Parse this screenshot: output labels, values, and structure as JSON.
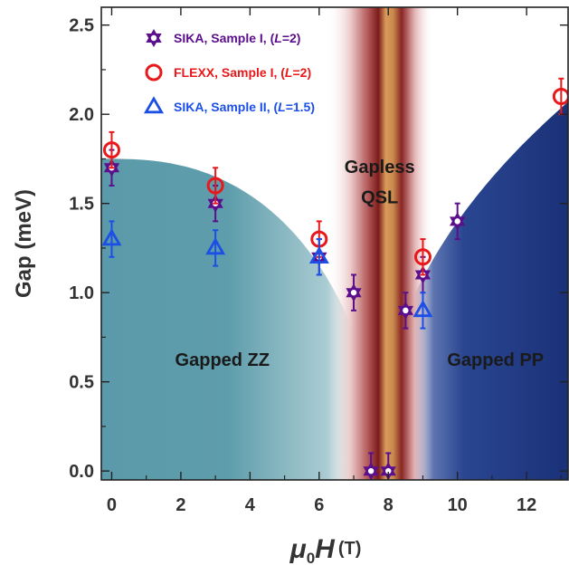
{
  "chart_data": {
    "type": "scatter",
    "title": "",
    "xlabel": "μ0H (T)",
    "xlabel_parts": {
      "mu": "μ",
      "sub": "0",
      "h": "H",
      "unit": "(T)"
    },
    "ylabel": "Gap (meV)",
    "xlim": [
      -0.3,
      13.2
    ],
    "ylim": [
      -0.05,
      2.6
    ],
    "x_ticks": [
      0,
      2,
      4,
      6,
      8,
      10,
      12
    ],
    "x_tick_labels": [
      "0",
      "2",
      "4",
      "6",
      "8",
      "10",
      "12"
    ],
    "y_ticks": [
      0.0,
      0.5,
      1.0,
      1.5,
      2.0,
      2.5
    ],
    "y_tick_labels": [
      "0.0",
      "0.5",
      "1.0",
      "1.5",
      "2.0",
      "2.5"
    ],
    "grid": false,
    "legend_position": "top-left",
    "series": [
      {
        "name": "SIKA, Sample I, (L=2)",
        "label_parts": [
          "SIKA, Sample I, (",
          "L",
          "=2)"
        ],
        "marker": "star",
        "color": "#5b0f8c",
        "points": [
          {
            "x": 0,
            "y": 1.7,
            "err": 0.1
          },
          {
            "x": 3,
            "y": 1.5,
            "err": 0.1
          },
          {
            "x": 6,
            "y": 1.2,
            "err": 0.1
          },
          {
            "x": 7,
            "y": 1.0,
            "err": 0.1
          },
          {
            "x": 7.5,
            "y": 0.0,
            "err": 0.1
          },
          {
            "x": 8,
            "y": 0.0,
            "err": 0.1
          },
          {
            "x": 8.5,
            "y": 0.9,
            "err": 0.1
          },
          {
            "x": 9,
            "y": 1.1,
            "err": 0.1
          },
          {
            "x": 10,
            "y": 1.4,
            "err": 0.1
          }
        ]
      },
      {
        "name": "FLEXX, Sample I, (L=2)",
        "label_parts": [
          "FLEXX, Sample I, (",
          "L",
          "=2)"
        ],
        "marker": "circle",
        "color": "#e8181b",
        "points": [
          {
            "x": 0,
            "y": 1.8,
            "err": 0.1
          },
          {
            "x": 3,
            "y": 1.6,
            "err": 0.1
          },
          {
            "x": 6,
            "y": 1.3,
            "err": 0.1
          },
          {
            "x": 9,
            "y": 1.2,
            "err": 0.1
          },
          {
            "x": 13,
            "y": 2.1,
            "err": 0.1
          }
        ]
      },
      {
        "name": "SIKA, Sample II, (L=1.5)",
        "label_parts": [
          "SIKA, Sample II, (",
          "L",
          "=1.5)"
        ],
        "marker": "triangle",
        "color": "#1b4fe6",
        "points": [
          {
            "x": 0,
            "y": 1.3,
            "err": 0.1
          },
          {
            "x": 3,
            "y": 1.25,
            "err": 0.1
          },
          {
            "x": 6,
            "y": 1.2,
            "err": 0.1
          },
          {
            "x": 9,
            "y": 0.9,
            "err": 0.1
          }
        ]
      }
    ],
    "regions": [
      {
        "label": "Gapped ZZ",
        "color": "#5b9aaa"
      },
      {
        "label": "Gapless QSL",
        "lines": [
          "Gapless",
          "QSL"
        ],
        "color": "#8a2525"
      },
      {
        "label": "Gapped PP",
        "color": "#1a3178"
      }
    ]
  }
}
